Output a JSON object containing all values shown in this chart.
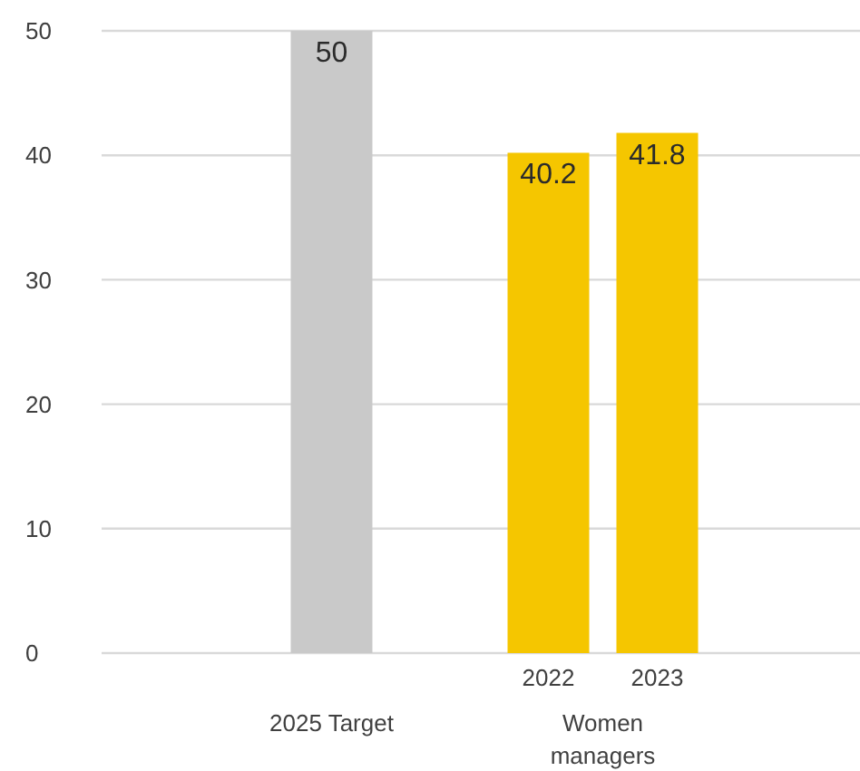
{
  "chart_data": {
    "type": "bar",
    "categories": [
      "2025 Target",
      "Women managers"
    ],
    "series": [
      {
        "color": "#c9c9c9",
        "values": [
          50,
          null
        ]
      },
      {
        "name": "2022",
        "color": "#f5c600",
        "values": [
          null,
          40.2
        ]
      },
      {
        "name": "2023",
        "color": "#f5c600",
        "values": [
          null,
          41.8
        ]
      }
    ],
    "ylim": [
      0,
      50
    ],
    "yticks": [
      0,
      10,
      20,
      30,
      40,
      50
    ],
    "grid": "y",
    "data_labels": true
  }
}
